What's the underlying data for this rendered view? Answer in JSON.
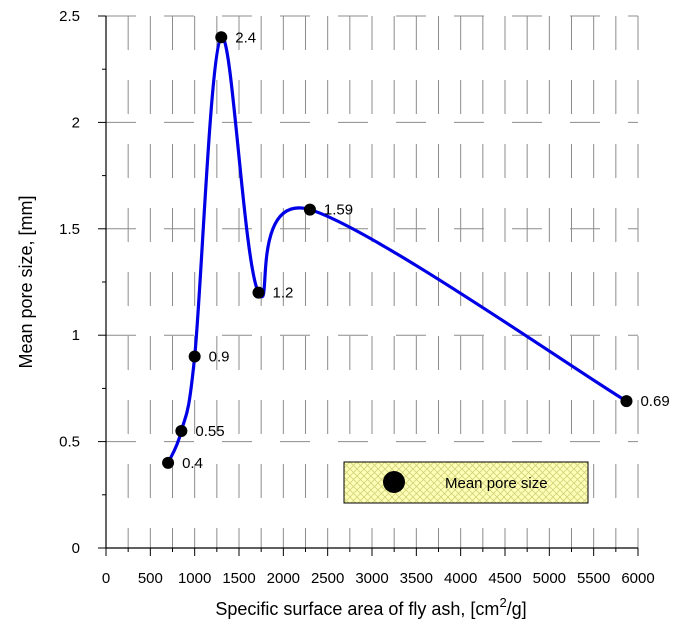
{
  "chart_data": {
    "type": "line",
    "xlabel": "Specific surface area of fly ash, [cm",
    "xlabel_sup": "2",
    "xlabel_end": "/g]",
    "ylabel": "Mean pore size, [mm]",
    "xlim": [
      0,
      6000
    ],
    "ylim": [
      0,
      2.5
    ],
    "x_ticks": [
      "0",
      "500",
      "1000",
      "1500",
      "2000",
      "2500",
      "3000",
      "3500",
      "4000",
      "4500",
      "5000",
      "5500",
      "6000"
    ],
    "y_ticks": [
      "0",
      "0.5",
      "1",
      "1.5",
      "2",
      "2.5"
    ],
    "grid": "dashed",
    "legend_position": "bottom-right",
    "series": [
      {
        "name": "Mean pore size",
        "color": "#0000e6",
        "marker": "filled-circle",
        "x": [
          700,
          850,
          1000,
          1300,
          1720,
          2300,
          5870
        ],
        "y": [
          0.4,
          0.55,
          0.9,
          2.4,
          1.2,
          1.59,
          0.69
        ],
        "labels": [
          "0.4",
          "0.55",
          "0.9",
          "2.4",
          "1.2",
          "1.59",
          "0.69"
        ]
      }
    ]
  }
}
